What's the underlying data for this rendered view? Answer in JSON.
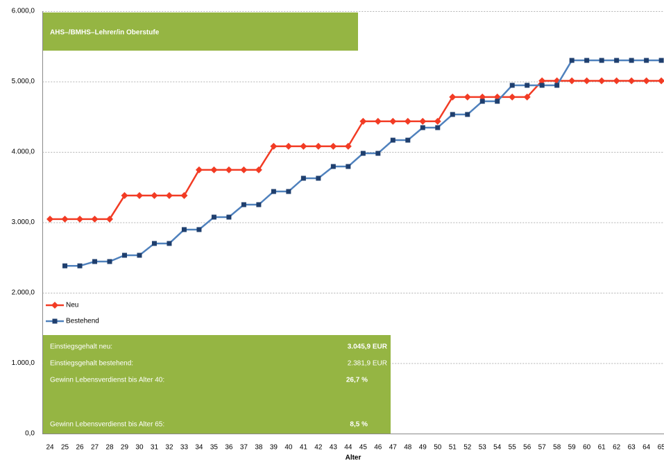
{
  "chart_data": {
    "type": "line",
    "title": "AHS–/BMHS–Lehrer/in Oberstufe",
    "x_label": "Alter",
    "categories": [
      "24",
      "25",
      "26",
      "27",
      "28",
      "29",
      "30",
      "31",
      "32",
      "33",
      "34",
      "35",
      "36",
      "37",
      "38",
      "39",
      "40",
      "41",
      "42",
      "43",
      "44",
      "45",
      "46",
      "47",
      "48",
      "49",
      "50",
      "51",
      "52",
      "53",
      "54",
      "55",
      "56",
      "57",
      "58",
      "59",
      "60",
      "61",
      "62",
      "63",
      "64",
      "65"
    ],
    "series": [
      {
        "name": "Neu",
        "color": "#f23b24",
        "marker": "diamond",
        "values": [
          3045.9,
          3045.9,
          3045.9,
          3045.9,
          3045.9,
          3380,
          3380,
          3380,
          3380,
          3380,
          3745,
          3745,
          3745,
          3745,
          3745,
          4080,
          4080,
          4080,
          4080,
          4080,
          4080,
          4435,
          4435,
          4435,
          4435,
          4435,
          4435,
          4780,
          4780,
          4780,
          4780,
          4780,
          4780,
          5010,
          5010,
          5010,
          5010,
          5010,
          5010,
          5010,
          5010,
          5010
        ]
      },
      {
        "name": "Bestehend",
        "color": "#4f81bd",
        "marker_color": "#1f3f6e",
        "marker": "square",
        "values": [
          null,
          2381.9,
          2381.9,
          2443,
          2443,
          2532,
          2532,
          2700,
          2700,
          2897,
          2897,
          3074,
          3074,
          3251,
          3251,
          3438,
          3438,
          3626,
          3626,
          3793,
          3793,
          3980,
          3980,
          4167,
          4167,
          4345,
          4345,
          4532,
          4532,
          4719,
          4719,
          4946,
          4946,
          4946,
          4946,
          5300,
          5300,
          5300,
          5300,
          5300,
          5300,
          5300
        ]
      }
    ],
    "ylim": [
      0,
      6000
    ],
    "yticks": [
      {
        "value": 0,
        "label": "0,0"
      },
      {
        "value": 1000,
        "label": "1.000,0"
      },
      {
        "value": 2000,
        "label": "2.000,0"
      },
      {
        "value": 3000,
        "label": "3.000,0"
      },
      {
        "value": 4000,
        "label": "4.000,0"
      },
      {
        "value": 5000,
        "label": "5.000,0"
      },
      {
        "value": 6000,
        "label": "6.000,0"
      }
    ],
    "grid": true,
    "legend": "left",
    "info": [
      {
        "label": "Einstiegsgehalt neu:",
        "value": "3.045,9 EUR",
        "bold": true
      },
      {
        "label": "Einstiegsgehalt bestehend:",
        "value": "2.381,9 EUR",
        "bold": false
      },
      {
        "label": "Gewinn Lebensverdienst bis Alter 40:",
        "value": "26,7 %",
        "bold": true
      },
      {
        "label": "Gewinn Lebensverdienst bis Alter 65:",
        "value": "8,5 %",
        "bold": true
      }
    ]
  }
}
